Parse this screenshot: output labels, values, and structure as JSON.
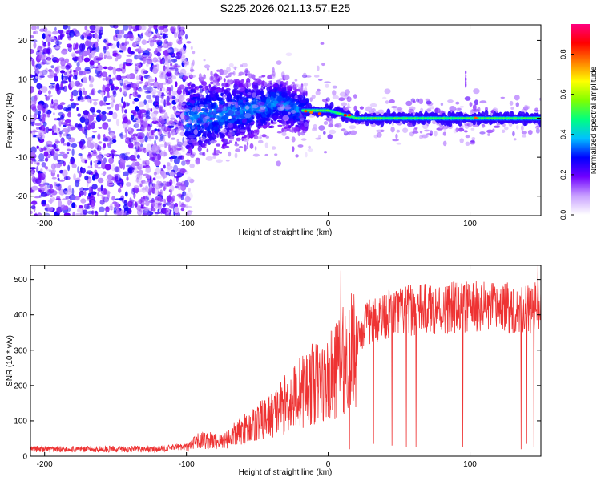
{
  "title": "S225.2026.021.13.57.E25",
  "chart_data": [
    {
      "type": "heatmap",
      "xlabel": "Height of straight line (km)",
      "ylabel": "Frequency (Hz)",
      "xlim": [
        -210,
        150
      ],
      "ylim": [
        -25,
        24
      ],
      "x_ticks": [
        -200,
        -100,
        0,
        100
      ],
      "y_ticks": [
        -20,
        -10,
        0,
        10,
        20
      ],
      "colorbar": {
        "label": "Normalized spectral amplitude",
        "range": [
          0,
          0.95
        ],
        "ticks": [
          0,
          0.2,
          0.4,
          0.6,
          0.8
        ],
        "colormap": [
          "#ffffff",
          "#c8a0ff",
          "#7000ff",
          "#0000ff",
          "#00c0ff",
          "#00ff80",
          "#80ff00",
          "#ffff00",
          "#ff8000",
          "#ff0000",
          "#ff0080"
        ]
      },
      "ridge": [
        {
          "x": -100,
          "y": 0
        },
        {
          "x": -60,
          "y": 2
        },
        {
          "x": -35,
          "y": 4
        },
        {
          "x": -20,
          "y": 2
        },
        {
          "x": 0,
          "y": 2
        },
        {
          "x": 10,
          "y": 1
        },
        {
          "x": 20,
          "y": 0
        },
        {
          "x": 150,
          "y": 0
        }
      ]
    },
    {
      "type": "line",
      "xlabel": "Height of straight line (km)",
      "ylabel": "SNR (10 * v/v)",
      "xlim": [
        -210,
        150
      ],
      "ylim": [
        0,
        540
      ],
      "x_ticks": [
        -200,
        -100,
        0,
        100
      ],
      "y_ticks": [
        0,
        100,
        200,
        300,
        400,
        500
      ],
      "line_color": "#ee3333",
      "envelope": {
        "x": [
          -210,
          -120,
          -100,
          -90,
          -75,
          -60,
          -50,
          -40,
          -30,
          -20,
          -10,
          0,
          10,
          20,
          25,
          30,
          40,
          60,
          80,
          100,
          120,
          150
        ],
        "y": [
          20,
          20,
          28,
          55,
          50,
          90,
          115,
          140,
          180,
          220,
          250,
          260,
          325,
          375,
          400,
          420,
          440,
          455,
          460,
          465,
          460,
          460
        ]
      },
      "dips": [
        {
          "x": 15,
          "y": 20
        },
        {
          "x": 32,
          "y": 35
        },
        {
          "x": 45,
          "y": 30
        },
        {
          "x": 55,
          "y": 25
        },
        {
          "x": 62,
          "y": 25
        },
        {
          "x": 95,
          "y": 25
        },
        {
          "x": 136,
          "y": 20
        },
        {
          "x": 140,
          "y": 35
        },
        {
          "x": 145,
          "y": 25
        },
        {
          "x": 148,
          "y": 30
        }
      ],
      "spikes": [
        {
          "x": 9,
          "y": 525
        },
        {
          "x": 148,
          "y": 540
        }
      ]
    }
  ]
}
